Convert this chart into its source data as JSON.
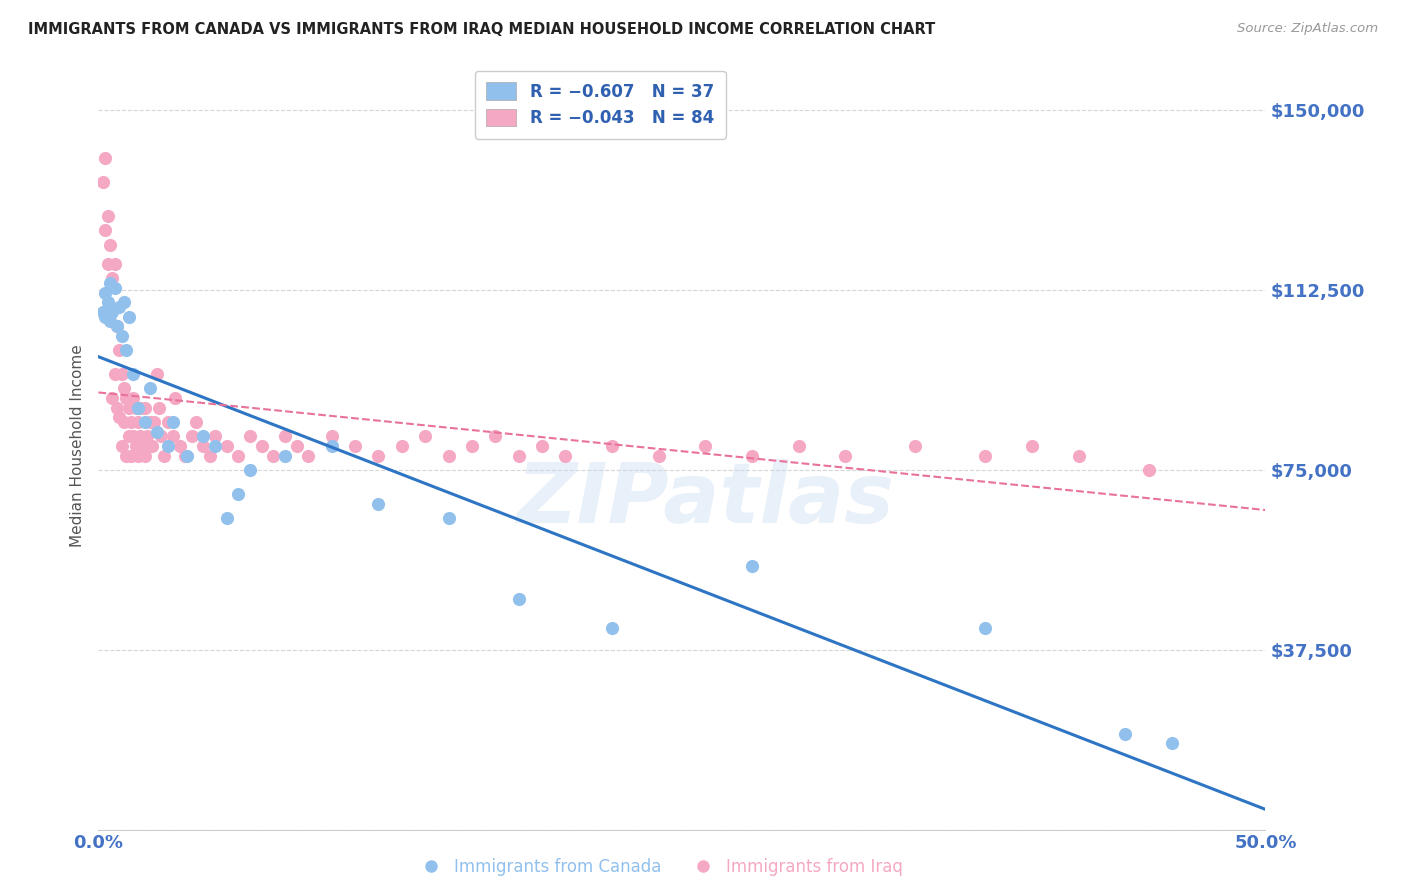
{
  "title": "IMMIGRANTS FROM CANADA VS IMMIGRANTS FROM IRAQ MEDIAN HOUSEHOLD INCOME CORRELATION CHART",
  "source": "Source: ZipAtlas.com",
  "ylabel": "Median Household Income",
  "yticks": [
    0,
    37500,
    75000,
    112500,
    150000
  ],
  "ytick_labels": [
    "",
    "$37,500",
    "$75,000",
    "$112,500",
    "$150,000"
  ],
  "xlim": [
    0.0,
    0.5
  ],
  "ylim": [
    0,
    160000
  ],
  "legend_canada": "R = -0.607   N = 37",
  "legend_iraq": "R = -0.043   N = 84",
  "legend_label_canada": "Immigrants from Canada",
  "legend_label_iraq": "Immigrants from Iraq",
  "canada_color": "#92c0ed",
  "iraq_color": "#f5a8c3",
  "canada_line_color": "#2e75c3",
  "iraq_line_color": "#e8729a",
  "background_color": "#ffffff",
  "watermark": "ZIPatlas",
  "title_color": "#222222",
  "axis_label_color": "#555555",
  "ytick_color": "#4472c4",
  "xtick_color": "#4472c4",
  "grid_color": "#cccccc",
  "canada_x": [
    0.002,
    0.003,
    0.003,
    0.004,
    0.005,
    0.005,
    0.006,
    0.007,
    0.008,
    0.009,
    0.01,
    0.011,
    0.012,
    0.013,
    0.015,
    0.017,
    0.02,
    0.022,
    0.025,
    0.03,
    0.032,
    0.038,
    0.045,
    0.05,
    0.055,
    0.06,
    0.065,
    0.08,
    0.1,
    0.12,
    0.15,
    0.18,
    0.22,
    0.28,
    0.38,
    0.44,
    0.46
  ],
  "canada_y": [
    108000,
    112000,
    107000,
    110000,
    106000,
    114000,
    108000,
    113000,
    105000,
    109000,
    103000,
    110000,
    100000,
    107000,
    95000,
    88000,
    85000,
    92000,
    83000,
    80000,
    85000,
    78000,
    82000,
    80000,
    65000,
    70000,
    75000,
    78000,
    80000,
    68000,
    65000,
    48000,
    42000,
    55000,
    42000,
    20000,
    18000
  ],
  "iraq_x": [
    0.002,
    0.003,
    0.003,
    0.004,
    0.004,
    0.005,
    0.005,
    0.006,
    0.006,
    0.007,
    0.007,
    0.008,
    0.008,
    0.009,
    0.009,
    0.01,
    0.01,
    0.011,
    0.011,
    0.012,
    0.012,
    0.013,
    0.013,
    0.014,
    0.014,
    0.015,
    0.015,
    0.016,
    0.016,
    0.017,
    0.017,
    0.018,
    0.018,
    0.019,
    0.02,
    0.02,
    0.021,
    0.022,
    0.023,
    0.024,
    0.025,
    0.026,
    0.027,
    0.028,
    0.03,
    0.032,
    0.033,
    0.035,
    0.037,
    0.04,
    0.042,
    0.045,
    0.048,
    0.05,
    0.055,
    0.06,
    0.065,
    0.07,
    0.075,
    0.08,
    0.085,
    0.09,
    0.1,
    0.11,
    0.12,
    0.13,
    0.14,
    0.15,
    0.16,
    0.17,
    0.18,
    0.19,
    0.2,
    0.22,
    0.24,
    0.26,
    0.28,
    0.3,
    0.32,
    0.35,
    0.38,
    0.4,
    0.42,
    0.45
  ],
  "iraq_y": [
    135000,
    140000,
    125000,
    128000,
    118000,
    122000,
    108000,
    115000,
    90000,
    118000,
    95000,
    105000,
    88000,
    100000,
    86000,
    95000,
    80000,
    92000,
    85000,
    90000,
    78000,
    88000,
    82000,
    85000,
    78000,
    90000,
    82000,
    88000,
    80000,
    85000,
    78000,
    88000,
    82000,
    80000,
    88000,
    78000,
    82000,
    85000,
    80000,
    85000,
    95000,
    88000,
    82000,
    78000,
    85000,
    82000,
    90000,
    80000,
    78000,
    82000,
    85000,
    80000,
    78000,
    82000,
    80000,
    78000,
    82000,
    80000,
    78000,
    82000,
    80000,
    78000,
    82000,
    80000,
    78000,
    80000,
    82000,
    78000,
    80000,
    82000,
    78000,
    80000,
    78000,
    80000,
    78000,
    80000,
    78000,
    80000,
    78000,
    80000,
    78000,
    80000,
    78000,
    75000
  ]
}
